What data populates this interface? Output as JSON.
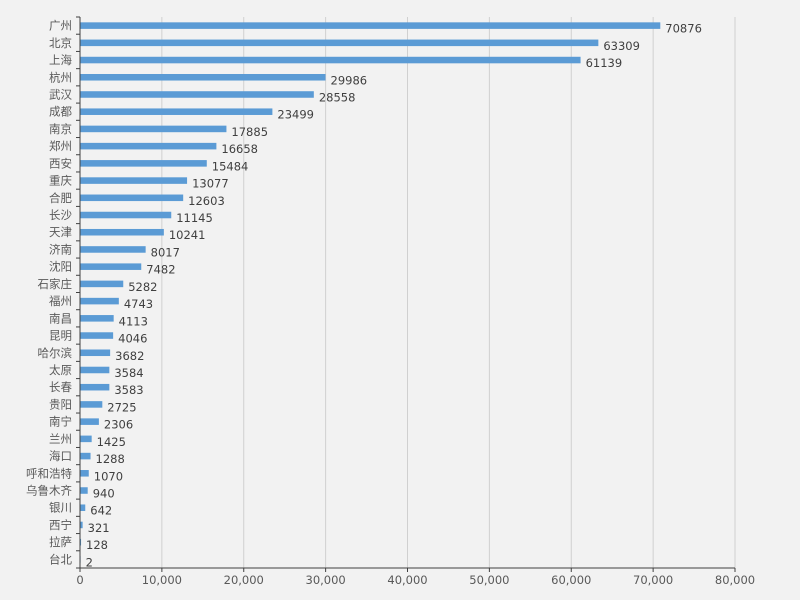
{
  "chart_data": {
    "type": "bar",
    "orientation": "horizontal",
    "title": "",
    "xlabel": "",
    "ylabel": "",
    "xlim": [
      0,
      80000
    ],
    "x_ticks": [
      0,
      10000,
      20000,
      30000,
      40000,
      50000,
      60000,
      70000,
      80000
    ],
    "x_tick_labels": [
      "0",
      "10,000",
      "20,000",
      "30,000",
      "40,000",
      "50,000",
      "60,000",
      "70,000",
      "80,000"
    ],
    "grid": true,
    "bar_color": "#5b9bd5",
    "categories": [
      "广州",
      "北京",
      "上海",
      "杭州",
      "武汉",
      "成都",
      "南京",
      "郑州",
      "西安",
      "重庆",
      "合肥",
      "长沙",
      "天津",
      "济南",
      "沈阳",
      "石家庄",
      "福州",
      "南昌",
      "昆明",
      "哈尔滨",
      "太原",
      "长春",
      "贵阳",
      "南宁",
      "兰州",
      "海口",
      "呼和浩特",
      "乌鲁木齐",
      "银川",
      "西宁",
      "拉萨",
      "台北"
    ],
    "values": [
      70876,
      63309,
      61139,
      29986,
      28558,
      23499,
      17885,
      16658,
      15484,
      13077,
      12603,
      11145,
      10241,
      8017,
      7482,
      5282,
      4743,
      4113,
      4046,
      3682,
      3584,
      3583,
      2725,
      2306,
      1425,
      1288,
      1070,
      940,
      642,
      321,
      128,
      2
    ],
    "value_labels": [
      "70876",
      "63309",
      "61139",
      "29986",
      "28558",
      "23499",
      "17885",
      "16658",
      "15484",
      "13077",
      "12603",
      "11145",
      "10241",
      "8017",
      "7482",
      "5282",
      "4743",
      "4113",
      "4046",
      "3682",
      "3584",
      "3583",
      "2725",
      "2306",
      "1425",
      "1288",
      "1070",
      "940",
      "642",
      "321",
      "128",
      "2"
    ]
  }
}
